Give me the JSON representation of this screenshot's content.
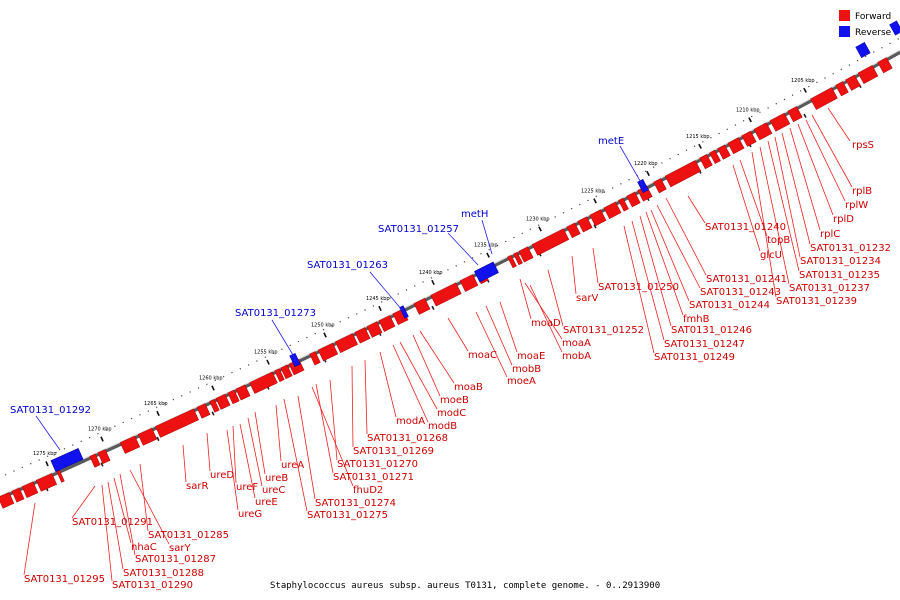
{
  "legend": {
    "forward": "Forward",
    "reverse": "Reverse"
  },
  "colors": {
    "forward": "#ee1111",
    "reverse": "#1111ee",
    "forward_label": "#cc0000",
    "reverse_label": "#0000cc"
  },
  "footer": "Staphylococcus aureus subsp. aureus T0131, complete genome. - 0..2913900",
  "ticks": [
    "1205 kbp",
    "1210 kbp",
    "1215 kbp",
    "1220 kbp",
    "1225 kbp",
    "1230 kbp",
    "1235 kbp",
    "1240 kbp",
    "1245 kbp",
    "1250 kbp",
    "1255 kbp",
    "1260 kbp",
    "1265 kbp",
    "1270 kbp",
    "1275 kbp"
  ],
  "forward_labels": [
    "rpsS",
    "rplB",
    "rplW",
    "rplD",
    "rplC",
    "SAT0131_01232",
    "SAT0131_01234",
    "SAT0131_01235",
    "SAT0131_01237",
    "SAT0131_01239",
    "SAT0131_01240",
    "topB",
    "glcU",
    "SAT0131_01241",
    "SAT0131_01243",
    "SAT0131_01244",
    "fmhB",
    "SAT0131_01246",
    "SAT0131_01247",
    "SAT0131_01249",
    "SAT0131_01250",
    "sarV",
    "SAT0131_01252",
    "moaD",
    "moaA",
    "mobA",
    "moaE",
    "mobB",
    "moeA",
    "moaC",
    "moaB",
    "moeB",
    "modC",
    "modB",
    "modA",
    "SAT0131_01268",
    "SAT0131_01269",
    "SAT0131_01270",
    "SAT0131_01271",
    "fhuD2",
    "SAT0131_01274",
    "SAT0131_01275",
    "ureA",
    "ureB",
    "ureC",
    "ureE",
    "ureF",
    "ureG",
    "ureD",
    "sarR",
    "SAT0131_01285",
    "sarY",
    "SAT0131_01287",
    "nhaC",
    "SAT0131_01288",
    "SAT0131_01290",
    "SAT0131_01291",
    "SAT0131_01295"
  ],
  "reverse_labels": [
    "metE",
    "metH",
    "SAT0131_01257",
    "SAT0131_01263",
    "SAT0131_01273",
    "SAT0131_01292"
  ]
}
